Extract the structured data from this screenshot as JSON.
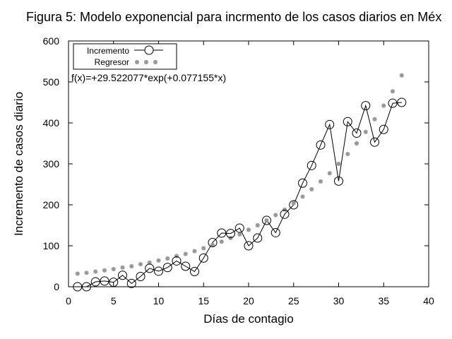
{
  "chart_data": {
    "type": "line",
    "title": "Figura 5: Modelo exponencial para incrmento de los casos diarios en Méx",
    "xlabel": "Días de contagio",
    "ylabel": "Incremento de casos diario",
    "xlim": [
      0,
      40
    ],
    "ylim": [
      0,
      600
    ],
    "xticks": [
      0,
      5,
      10,
      15,
      20,
      25,
      30,
      35,
      40
    ],
    "yticks": [
      0,
      100,
      200,
      300,
      400,
      500,
      600
    ],
    "grid": false,
    "legend_position": "top-left",
    "annotation": "f(x)=+29.522077*exp(+0.077155*x)",
    "series": [
      {
        "name": "Incremento",
        "style": "line-with-circles",
        "color": "#000000",
        "x": [
          1,
          2,
          3,
          4,
          5,
          6,
          7,
          8,
          9,
          10,
          11,
          12,
          13,
          14,
          15,
          16,
          17,
          18,
          19,
          20,
          21,
          22,
          23,
          24,
          25,
          26,
          27,
          28,
          29,
          30,
          31,
          32,
          33,
          34,
          35,
          36,
          37
        ],
        "y": [
          0,
          0,
          12,
          14,
          11,
          28,
          8,
          25,
          45,
          38,
          47,
          63,
          50,
          37,
          70,
          108,
          131,
          130,
          143,
          100,
          119,
          162,
          132,
          177,
          200,
          253,
          296,
          346,
          396,
          258,
          403,
          375,
          442,
          353,
          384,
          448,
          450
        ]
      },
      {
        "name": "Regresor",
        "style": "points",
        "color": "#999999",
        "model": {
          "a": 29.522077,
          "b": 0.077155
        },
        "x": [
          1,
          2,
          3,
          4,
          5,
          6,
          7,
          8,
          9,
          10,
          11,
          12,
          13,
          14,
          15,
          16,
          17,
          18,
          19,
          20,
          21,
          22,
          23,
          24,
          25,
          26,
          27,
          28,
          29,
          30,
          31,
          32,
          33,
          34,
          35,
          36,
          37
        ],
        "y": [
          32,
          34,
          37,
          40,
          43,
          47,
          50,
          55,
          59,
          64,
          69,
          75,
          80,
          87,
          94,
          102,
          110,
          119,
          128,
          139,
          150,
          162,
          175,
          188,
          204,
          220,
          238,
          257,
          277,
          300,
          324,
          350,
          378,
          409,
          442,
          477,
          516
        ]
      }
    ]
  }
}
